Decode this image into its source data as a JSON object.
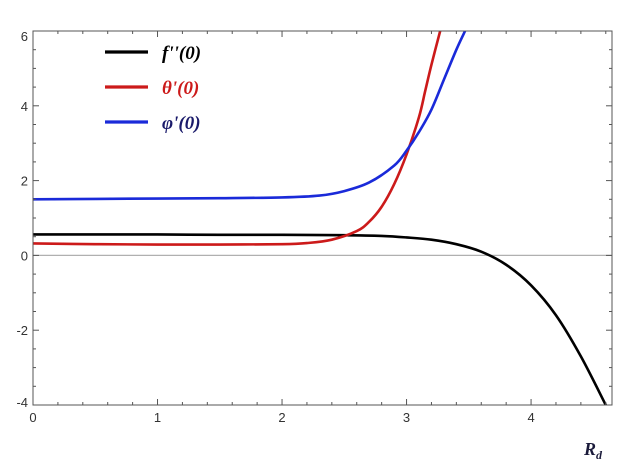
{
  "chart_data": {
    "type": "line",
    "title": "",
    "xlabel": "R_d",
    "xlabel_main": "R",
    "xlabel_sub": "d",
    "ylabel": "",
    "xlim": [
      0,
      4.65
    ],
    "ylim": [
      -4,
      6
    ],
    "x_ticks": [
      0,
      1,
      2,
      3,
      4
    ],
    "x_tick_labels": [
      "0",
      "1",
      "2",
      "3",
      "4"
    ],
    "y_ticks": [
      -4,
      -2,
      0,
      2,
      4,
      6
    ],
    "y_tick_labels": [
      "-4",
      "-2",
      "0",
      "2",
      "4",
      "6"
    ],
    "grid": false,
    "zero_line": true,
    "legend_position": "top-left",
    "series": [
      {
        "name": "f''(0)",
        "color": "#000000",
        "x": [
          0,
          0.5,
          1.0,
          1.5,
          2.0,
          2.5,
          2.8,
          3.0,
          3.2,
          3.4,
          3.6,
          3.8,
          4.0,
          4.2,
          4.4,
          4.6
        ],
        "y": [
          0.56,
          0.56,
          0.56,
          0.55,
          0.55,
          0.54,
          0.52,
          0.48,
          0.42,
          0.3,
          0.1,
          -0.25,
          -0.8,
          -1.6,
          -2.7,
          -4.0
        ]
      },
      {
        "name": "θ'(0)",
        "color": "#cc1a1a",
        "x": [
          0,
          0.5,
          1.0,
          1.5,
          2.0,
          2.2,
          2.4,
          2.6,
          2.7,
          2.8,
          2.9,
          3.0,
          3.1,
          3.15,
          3.2,
          3.27
        ],
        "y": [
          0.32,
          0.3,
          0.29,
          0.29,
          0.3,
          0.33,
          0.42,
          0.65,
          0.9,
          1.3,
          1.9,
          2.7,
          3.7,
          4.4,
          5.1,
          6.0
        ]
      },
      {
        "name": "φ'(0)",
        "color": "#1a2ad9",
        "x": [
          0,
          0.5,
          1.0,
          1.5,
          2.0,
          2.3,
          2.5,
          2.7,
          2.9,
          3.0,
          3.1,
          3.2,
          3.3,
          3.4,
          3.47
        ],
        "y": [
          1.5,
          1.51,
          1.52,
          1.53,
          1.55,
          1.6,
          1.72,
          1.95,
          2.4,
          2.8,
          3.3,
          3.9,
          4.7,
          5.5,
          6.0
        ]
      }
    ]
  }
}
